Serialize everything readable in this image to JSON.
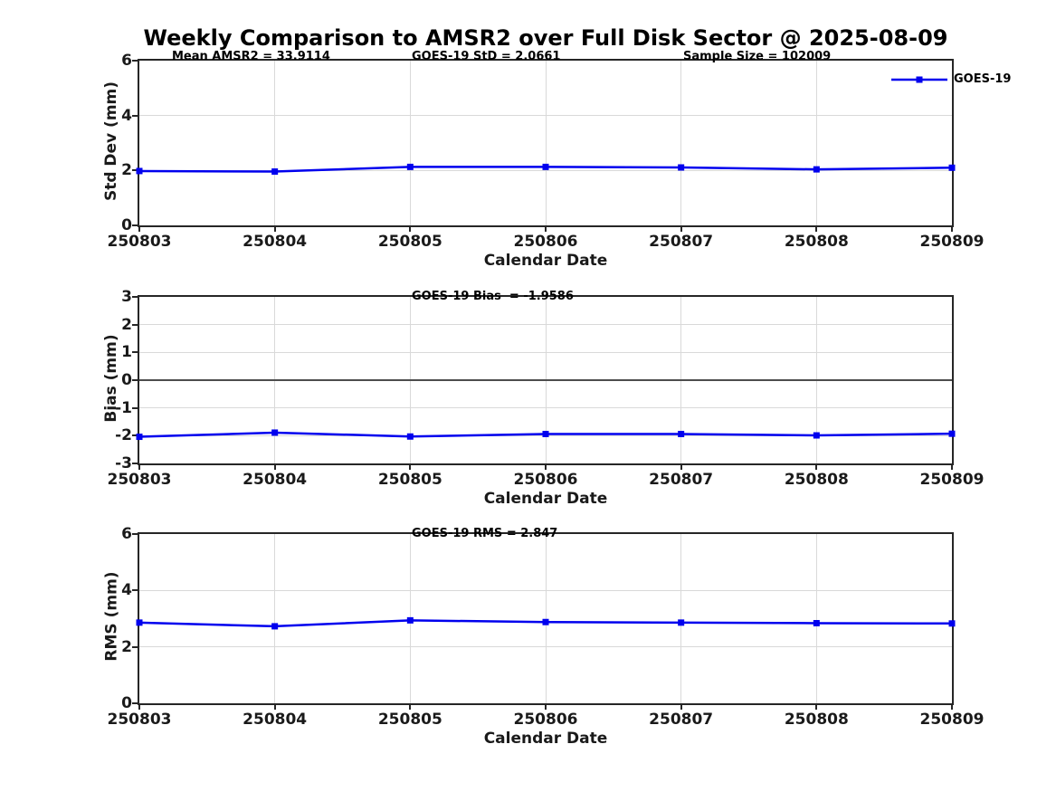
{
  "title": "Weekly Comparison to AMSR2 over Full Disk Sector @ 2025-08-09",
  "legend": {
    "label": "GOES-19"
  },
  "colors": {
    "line": "#0000EE",
    "grid": "#d9d9d9",
    "zero_line": "#4d4d4d",
    "axis": "#262626"
  },
  "chart_data": [
    {
      "type": "line",
      "name": "std-dev",
      "annotations": [
        "Mean AMSR2 = 33.9114",
        "GOES-19 StD = 2.0661",
        "Sample Size = 102009"
      ],
      "ylabel": "Std Dev (mm)",
      "xlabel": "Calendar Date",
      "categories": [
        "250803",
        "250804",
        "250805",
        "250806",
        "250807",
        "250808",
        "250809"
      ],
      "series": [
        {
          "name": "GOES-19",
          "values": [
            1.98,
            1.96,
            2.13,
            2.13,
            2.11,
            2.04,
            2.1
          ]
        }
      ],
      "ylim": [
        0,
        6
      ],
      "yticks": [
        0,
        2,
        4,
        6
      ],
      "grid": true,
      "zero_line": false,
      "legend_position": "northeast-outside"
    },
    {
      "type": "line",
      "name": "bias",
      "annotations": [
        "GOES-19 Bias  = -1.9586"
      ],
      "ylabel": "Bias (mm)",
      "xlabel": "Calendar Date",
      "categories": [
        "250803",
        "250804",
        "250805",
        "250806",
        "250807",
        "250808",
        "250809"
      ],
      "series": [
        {
          "name": "GOES-19",
          "values": [
            -2.04,
            -1.89,
            -2.03,
            -1.94,
            -1.94,
            -1.99,
            -1.93
          ]
        }
      ],
      "ylim": [
        -3,
        3
      ],
      "yticks": [
        -3,
        -2,
        -1,
        0,
        1,
        2,
        3
      ],
      "grid": true,
      "zero_line": true
    },
    {
      "type": "line",
      "name": "rms",
      "annotations": [
        "GOES-19 RMS = 2.847"
      ],
      "ylabel": "RMS (mm)",
      "xlabel": "Calendar Date",
      "categories": [
        "250803",
        "250804",
        "250805",
        "250806",
        "250807",
        "250808",
        "250809"
      ],
      "series": [
        {
          "name": "GOES-19",
          "values": [
            2.86,
            2.73,
            2.94,
            2.88,
            2.86,
            2.84,
            2.83
          ]
        }
      ],
      "ylim": [
        0,
        6
      ],
      "yticks": [
        0,
        2,
        4,
        6
      ],
      "grid": true,
      "zero_line": false
    }
  ]
}
